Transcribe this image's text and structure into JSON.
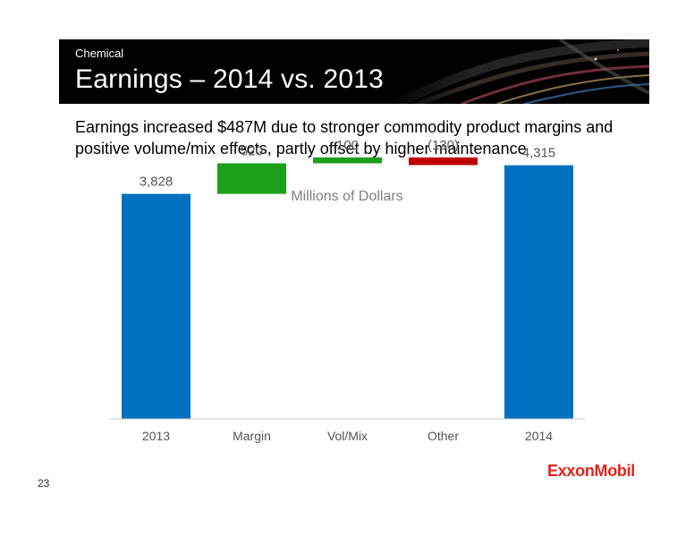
{
  "header": {
    "section": "Chemical",
    "title": "Earnings – 2014 vs. 2013"
  },
  "headline": "Earnings increased $487M due to stronger commodity product margins and positive volume/mix effects, partly offset by higher maintenance",
  "slide_number": "23",
  "logo_text": "ExxonMobil",
  "colors": {
    "total": "#0070c0",
    "increase": "#1aa01a",
    "decrease": "#c00000",
    "label": "#555555",
    "axis": "#c8c8c8"
  },
  "chart_data": {
    "type": "bar",
    "subtype": "waterfall",
    "title": "Millions of Dollars",
    "categories": [
      "2013",
      "Margin",
      "Vol/Mix",
      "Other",
      "2014"
    ],
    "values": [
      3828,
      520,
      100,
      -130,
      4315
    ],
    "labels": [
      "3,828",
      "520",
      "100",
      "(130)",
      "4,315"
    ],
    "kinds": [
      "total",
      "increase",
      "increase",
      "decrease",
      "total"
    ],
    "grid": false,
    "legend": "none"
  }
}
